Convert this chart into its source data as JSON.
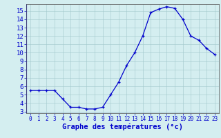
{
  "hours": [
    0,
    1,
    2,
    3,
    4,
    5,
    6,
    7,
    8,
    9,
    10,
    11,
    12,
    13,
    14,
    15,
    16,
    17,
    18,
    19,
    20,
    21,
    22,
    23
  ],
  "temps": [
    5.5,
    5.5,
    5.5,
    5.5,
    4.5,
    3.5,
    3.5,
    3.3,
    3.3,
    3.5,
    5.0,
    6.5,
    8.5,
    10.0,
    12.0,
    14.8,
    15.2,
    15.5,
    15.3,
    14.0,
    12.0,
    11.5,
    10.5,
    9.8
  ],
  "xlabel": "Graphe des températures (°c)",
  "ylim": [
    2.8,
    15.8
  ],
  "xlim": [
    -0.5,
    23.5
  ],
  "yticks": [
    3,
    4,
    5,
    6,
    7,
    8,
    9,
    10,
    11,
    12,
    13,
    14,
    15
  ],
  "xtick_labels": [
    "0",
    "1",
    "2",
    "3",
    "4",
    "5",
    "6",
    "7",
    "8",
    "9",
    "10",
    "11",
    "12",
    "13",
    "14",
    "15",
    "16",
    "17",
    "18",
    "19",
    "20",
    "21",
    "22",
    "23"
  ],
  "line_color": "#0000cc",
  "marker": "+",
  "bg_color": "#d4eef0",
  "grid_color": "#a0c8cc",
  "axis_label_color": "#0000cc",
  "tick_color": "#0000cc",
  "border_color": "#555555",
  "xlabel_fontsize": 7.5,
  "ytick_fontsize": 6.5,
  "xtick_fontsize": 5.5
}
